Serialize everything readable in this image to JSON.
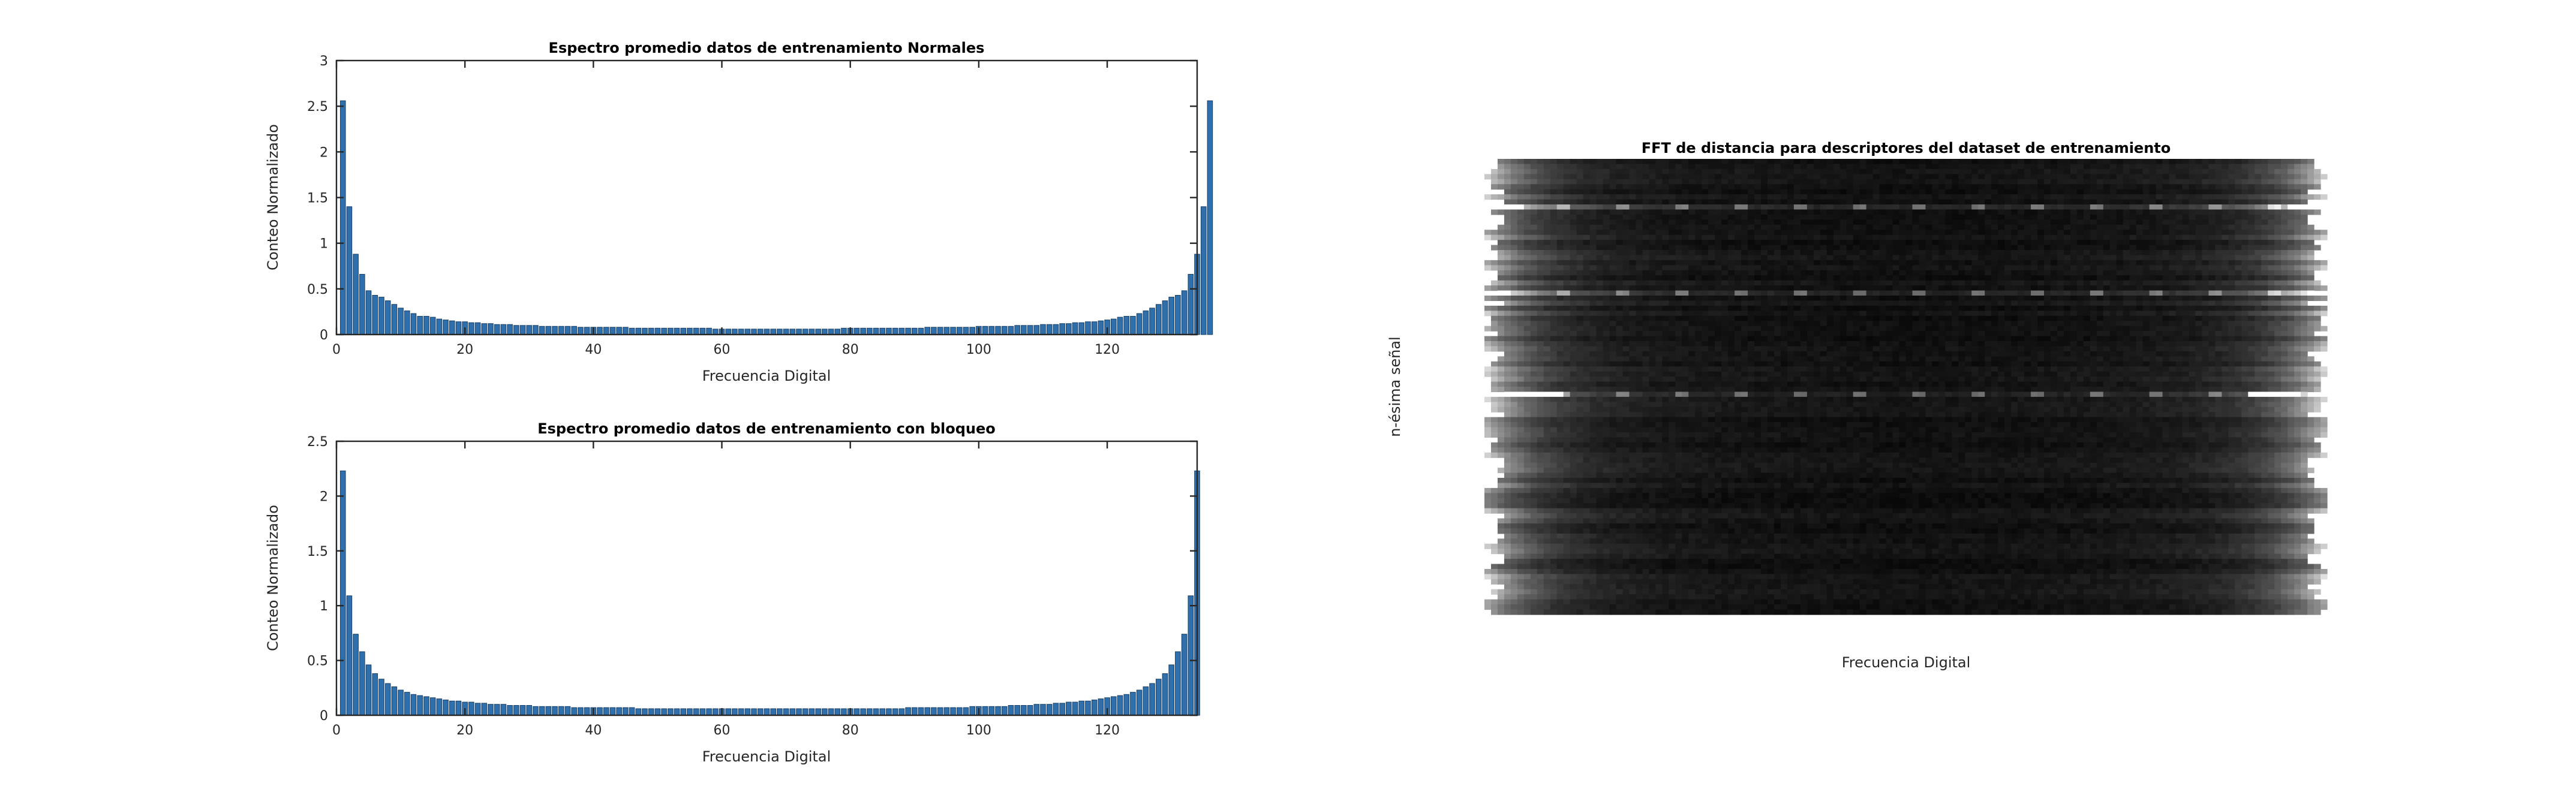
{
  "chart_data": [
    {
      "type": "bar",
      "title": "Espectro promedio datos de entrenamiento Normales",
      "xlabel": "Frecuencia Digital",
      "ylabel": "Conteo Normalizado",
      "xlim": [
        0,
        134
      ],
      "ylim": [
        0,
        3
      ],
      "xticks": [
        0,
        20,
        40,
        60,
        80,
        100,
        120
      ],
      "yticks": [
        0,
        0.5,
        1,
        1.5,
        2,
        2.5,
        3
      ],
      "xtick_labels": [
        "0",
        "20",
        "40",
        "60",
        "80",
        "100",
        "120"
      ],
      "ytick_labels": [
        "0",
        "0.5",
        "1",
        "1.5",
        "2",
        "2.5",
        "3"
      ],
      "color": "#2e6fac",
      "grid": false,
      "x_start": 1,
      "values": [
        2.56,
        1.4,
        0.88,
        0.66,
        0.48,
        0.43,
        0.41,
        0.37,
        0.33,
        0.29,
        0.26,
        0.23,
        0.2,
        0.2,
        0.19,
        0.17,
        0.16,
        0.15,
        0.14,
        0.14,
        0.13,
        0.13,
        0.12,
        0.12,
        0.11,
        0.11,
        0.11,
        0.1,
        0.1,
        0.1,
        0.1,
        0.09,
        0.09,
        0.09,
        0.09,
        0.09,
        0.09,
        0.08,
        0.08,
        0.08,
        0.08,
        0.08,
        0.08,
        0.08,
        0.08,
        0.07,
        0.07,
        0.07,
        0.07,
        0.07,
        0.07,
        0.07,
        0.07,
        0.07,
        0.07,
        0.07,
        0.07,
        0.07,
        0.06,
        0.06,
        0.06,
        0.06,
        0.06,
        0.06,
        0.06,
        0.06,
        0.06,
        0.06,
        0.06,
        0.06,
        0.06,
        0.06,
        0.06,
        0.06,
        0.06,
        0.06,
        0.06,
        0.06,
        0.07,
        0.07,
        0.07,
        0.07,
        0.07,
        0.07,
        0.07,
        0.07,
        0.07,
        0.07,
        0.07,
        0.07,
        0.07,
        0.08,
        0.08,
        0.08,
        0.08,
        0.08,
        0.08,
        0.08,
        0.08,
        0.09,
        0.09,
        0.09,
        0.09,
        0.09,
        0.09,
        0.1,
        0.1,
        0.1,
        0.1,
        0.11,
        0.11,
        0.11,
        0.12,
        0.12,
        0.13,
        0.13,
        0.14,
        0.14,
        0.15,
        0.16,
        0.17,
        0.19,
        0.2,
        0.2,
        0.23,
        0.26,
        0.29,
        0.33,
        0.37,
        0.41,
        0.43,
        0.48,
        0.66,
        0.88,
        1.4,
        2.56
      ]
    },
    {
      "type": "bar",
      "title": "Espectro promedio datos de entrenamiento con bloqueo",
      "xlabel": "Frecuencia Digital",
      "ylabel": "Conteo Normalizado",
      "xlim": [
        0,
        134
      ],
      "ylim": [
        0,
        2.5
      ],
      "xticks": [
        0,
        20,
        40,
        60,
        80,
        100,
        120
      ],
      "yticks": [
        0,
        0.5,
        1,
        1.5,
        2,
        2.5
      ],
      "xtick_labels": [
        "0",
        "20",
        "40",
        "60",
        "80",
        "100",
        "120"
      ],
      "ytick_labels": [
        "0",
        "0.5",
        "1",
        "1.5",
        "2",
        "2.5"
      ],
      "color": "#2e6fac",
      "grid": false,
      "x_start": 1,
      "values": [
        2.23,
        1.09,
        0.74,
        0.58,
        0.46,
        0.38,
        0.33,
        0.29,
        0.26,
        0.23,
        0.21,
        0.19,
        0.18,
        0.17,
        0.16,
        0.15,
        0.14,
        0.13,
        0.13,
        0.12,
        0.12,
        0.11,
        0.11,
        0.1,
        0.1,
        0.1,
        0.09,
        0.09,
        0.09,
        0.09,
        0.08,
        0.08,
        0.08,
        0.08,
        0.08,
        0.08,
        0.07,
        0.07,
        0.07,
        0.07,
        0.07,
        0.07,
        0.07,
        0.07,
        0.07,
        0.07,
        0.06,
        0.06,
        0.06,
        0.06,
        0.06,
        0.06,
        0.06,
        0.06,
        0.06,
        0.06,
        0.06,
        0.06,
        0.06,
        0.06,
        0.06,
        0.06,
        0.06,
        0.06,
        0.06,
        0.06,
        0.06,
        0.06,
        0.06,
        0.06,
        0.06,
        0.06,
        0.06,
        0.06,
        0.06,
        0.06,
        0.06,
        0.06,
        0.06,
        0.06,
        0.06,
        0.06,
        0.06,
        0.06,
        0.06,
        0.06,
        0.06,
        0.06,
        0.07,
        0.07,
        0.07,
        0.07,
        0.07,
        0.07,
        0.07,
        0.07,
        0.07,
        0.07,
        0.08,
        0.08,
        0.08,
        0.08,
        0.08,
        0.08,
        0.09,
        0.09,
        0.09,
        0.09,
        0.1,
        0.1,
        0.1,
        0.11,
        0.11,
        0.12,
        0.12,
        0.13,
        0.13,
        0.14,
        0.15,
        0.16,
        0.17,
        0.18,
        0.19,
        0.21,
        0.23,
        0.26,
        0.29,
        0.33,
        0.38,
        0.46,
        0.58,
        0.74,
        1.09,
        2.23
      ]
    },
    {
      "type": "heatmap",
      "title": "FFT de distancia para descriptores del dataset de entrenamiento",
      "xlabel": "Frecuencia Digital",
      "ylabel": "n-ésima señal",
      "colormap": "gray",
      "n_cols": 128,
      "n_rows": 90,
      "axes_visible": false,
      "description_values": "Relative spectral magnitude (0-1) across digital frequency and signal index, with U-shaped profile bright at both frequency edges, dark center, several bright horizontal rows.",
      "bright_rows": [
        9,
        26,
        46
      ]
    }
  ]
}
